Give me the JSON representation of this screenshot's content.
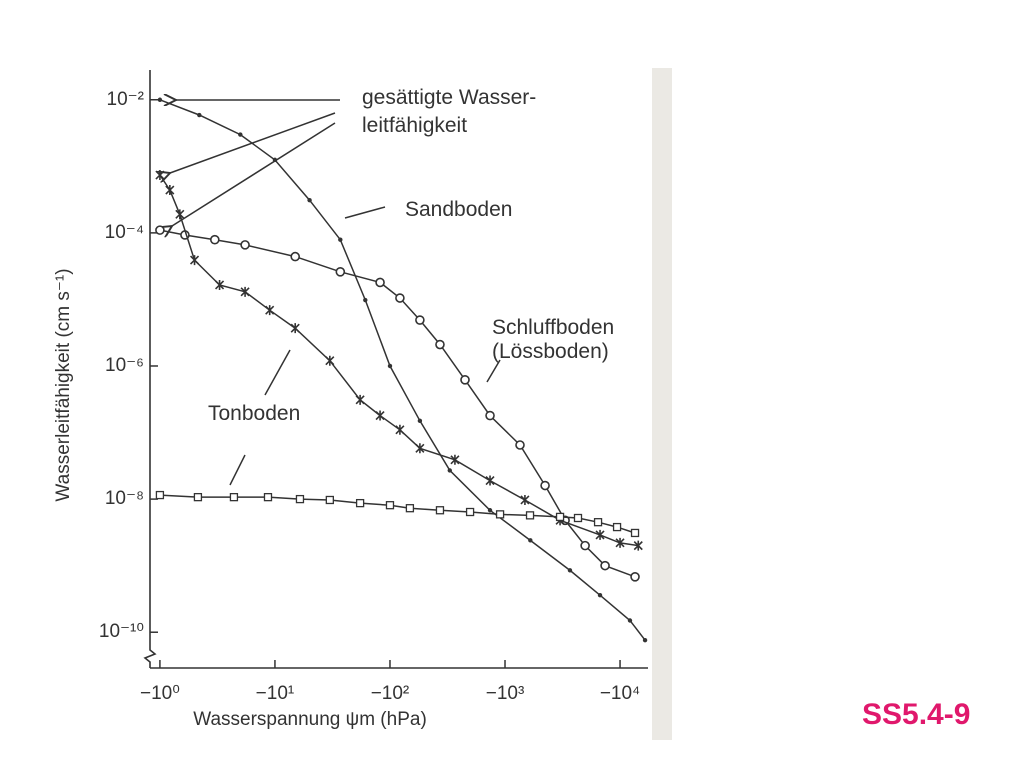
{
  "chart_data": {
    "type": "line",
    "xlabel": "Wasserspannung ψm (hPa)",
    "ylabel": "Wasserleitfähigkeit (cm s⁻¹)",
    "xscale": "log",
    "yscale": "log",
    "xlim": [
      -0.82,
      -17500
    ],
    "ylim": [
      0.028,
      2.9e-11
    ],
    "xticks": [
      {
        "value": -1,
        "label": "−10⁰"
      },
      {
        "value": -10,
        "label": "−10¹"
      },
      {
        "value": -100,
        "label": "−10²"
      },
      {
        "value": -1000,
        "label": "−10³"
      },
      {
        "value": -10000,
        "label": "−10⁴"
      }
    ],
    "yticks": [
      {
        "value": 0.01,
        "label": "10⁻²"
      },
      {
        "value": 0.0001,
        "label": "10⁻⁴"
      },
      {
        "value": 1e-06,
        "label": "10⁻⁶"
      },
      {
        "value": 1e-08,
        "label": "10⁻⁸"
      },
      {
        "value": 1e-10,
        "label": "10⁻¹⁰"
      }
    ],
    "annotations": [
      "gesättigte Wasser-",
      "leitfähigkeit"
    ],
    "figure_id": "SS5.4-9",
    "series": [
      {
        "name": "Sandboden",
        "color": "#333333",
        "marker": "dot",
        "x": [
          -1,
          -2.2,
          -5,
          -10,
          -20,
          -37,
          -61,
          -100,
          -182,
          -331,
          -741,
          -1660,
          -3670,
          -6700,
          -12200,
          -16500
        ],
        "values": [
          0.01,
          0.0059,
          0.003,
          0.00125,
          0.00031,
          7.9e-05,
          9.8e-06,
          1e-06,
          1.5e-07,
          2.7e-08,
          6.8e-09,
          2.4e-09,
          8.5e-10,
          3.6e-10,
          1.5e-10,
          7.6e-11
        ]
      },
      {
        "name": "Schluffboden (Lössboden)",
        "color": "#333333",
        "marker": "circle",
        "x": [
          -1,
          -1.65,
          -3,
          -5.5,
          -15,
          -37,
          -82,
          -122,
          -182,
          -272,
          -449,
          -741,
          -1350,
          -2230,
          -3330,
          -4970,
          -7410,
          -13500
        ],
        "values": [
          0.00011,
          9.3e-05,
          7.9e-05,
          6.6e-05,
          4.4e-05,
          2.6e-05,
          1.8e-05,
          1.05e-05,
          4.9e-06,
          2.1e-06,
          6.2e-07,
          1.8e-07,
          6.5e-08,
          1.6e-08,
          4.8e-09,
          2e-09,
          1e-09,
          6.8e-10
        ]
      },
      {
        "name": "Tonboden",
        "color": "#333333",
        "marker": "star",
        "x": [
          -1,
          -1.22,
          -1.49,
          -2,
          -3.3,
          -5.5,
          -9,
          -15,
          -30,
          -55,
          -82,
          -122,
          -182,
          -367,
          -741,
          -1490,
          -3010,
          -6700,
          -10000,
          -14400
        ],
        "values": [
          0.00074,
          0.00044,
          0.00019,
          3.9e-05,
          1.65e-05,
          1.3e-05,
          6.9e-06,
          3.7e-06,
          1.2e-06,
          3.1e-07,
          1.8e-07,
          1.1e-07,
          5.8e-08,
          3.9e-08,
          1.9e-08,
          9.7e-09,
          4.8e-09,
          2.9e-09,
          2.2e-09,
          2e-09
        ]
      },
      {
        "color": "#333333",
        "marker": "square",
        "x": [
          -1,
          -2.14,
          -4.4,
          -8.7,
          -16.5,
          -30,
          -55,
          -100,
          -149,
          -272,
          -497,
          -906,
          -1650,
          -3010,
          -4310,
          -6440,
          -9420,
          -13500
        ],
        "values": [
          1.15e-08,
          1.07e-08,
          1.07e-08,
          1.07e-08,
          1e-08,
          9.7e-09,
          8.7e-09,
          8.1e-09,
          7.3e-09,
          6.8e-09,
          6.4e-09,
          5.9e-09,
          5.7e-09,
          5.4e-09,
          5.2e-09,
          4.5e-09,
          3.8e-09,
          3.1e-09
        ]
      }
    ]
  }
}
